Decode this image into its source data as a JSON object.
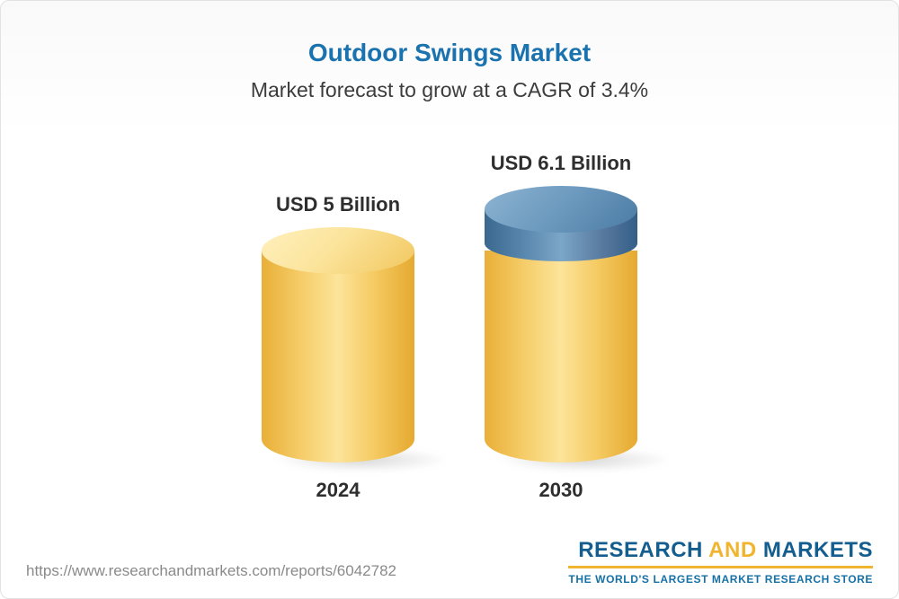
{
  "header": {
    "title": "Outdoor Swings Market",
    "subtitle": "Market forecast to grow at a CAGR of 3.4%"
  },
  "chart_data": {
    "type": "bar",
    "categories": [
      "2024",
      "2030"
    ],
    "values": [
      5,
      6.1
    ],
    "value_labels": [
      "USD 5 Billion",
      "USD 6.1 Billion"
    ],
    "title": "Outdoor Swings Market",
    "subtitle": "Market forecast to grow at a CAGR of 3.4%",
    "cagr_percent": 3.4,
    "unit": "USD Billion",
    "baseline_value": 5,
    "bar_style": "3d-cylinder",
    "bar_colors": {
      "base": "#F5C95F",
      "growth_segment": "#4E80A8"
    },
    "grid": false,
    "legend": "none"
  },
  "footer": {
    "url": "https://www.researchandmarkets.com/reports/6042782",
    "logo": {
      "research": "RESEARCH ",
      "and": "AND",
      "markets": " MARKETS",
      "tagline": "THE WORLD'S LARGEST MARKET RESEARCH STORE"
    }
  },
  "colors": {
    "title_blue": "#1A73AF",
    "subtitle_gray": "#3C3C3C",
    "label_dark": "#2E2E2E",
    "url_gray": "#8A8A8A",
    "logo_blue": "#135E8E",
    "logo_gold": "#F0B42E"
  }
}
